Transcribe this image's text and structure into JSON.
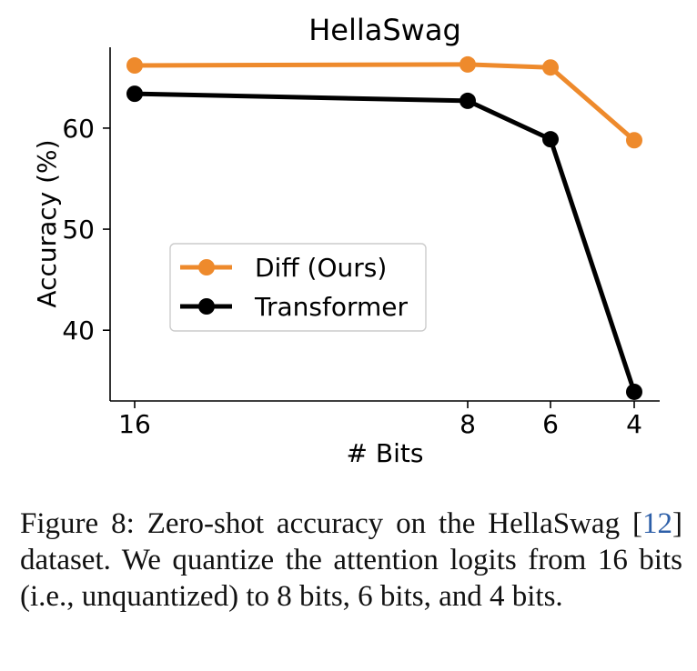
{
  "chart_data": {
    "type": "line",
    "title": "HellaSwag",
    "xlabel": "# Bits",
    "ylabel": "Accuracy (%)",
    "x": [
      "16",
      "8",
      "6",
      "4"
    ],
    "yticks": [
      "40",
      "50",
      "60"
    ],
    "ylim": [
      33,
      68
    ],
    "grid": false,
    "legend_position": "center-left",
    "series": [
      {
        "name": "Diff (Ours)",
        "color": "#ee8a2c",
        "values": [
          66.2,
          66.3,
          66.0,
          58.8
        ]
      },
      {
        "name": "Transformer",
        "color": "#000000",
        "values": [
          63.4,
          62.7,
          58.9,
          33.9
        ]
      }
    ]
  },
  "caption": {
    "label": "Figure 8:",
    "text_before": "Zero-shot accuracy on the HellaSwag [",
    "ref": "12",
    "text_after": "] dataset. We quantize the attention logits from 16 bits (i.e., unquantized) to 8 bits, 6 bits, and 4 bits."
  }
}
